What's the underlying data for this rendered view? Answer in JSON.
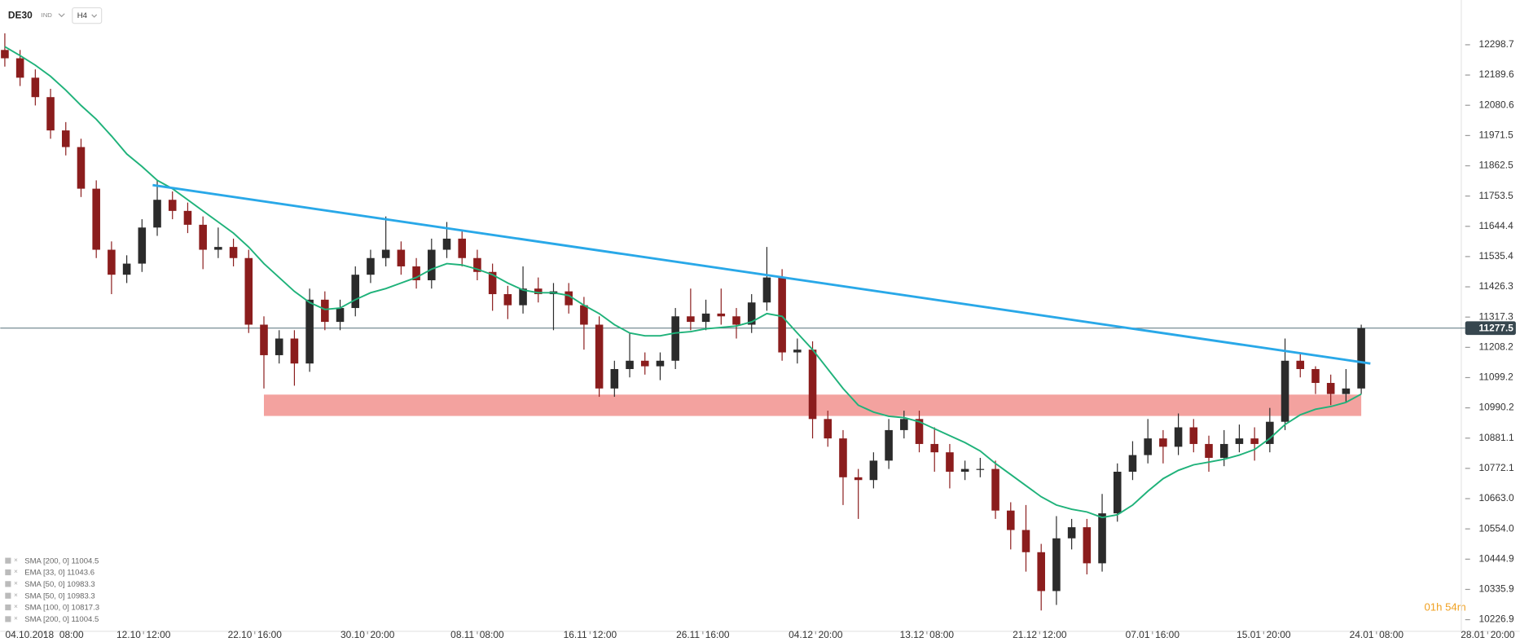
{
  "chart_data": {
    "type": "candlestick",
    "symbol": "DE30",
    "market": "IND",
    "timeframe": "H4",
    "up_color": "#2b2b2b",
    "down_color": "#8b1d1d",
    "open": [
      12280,
      12250,
      12180,
      12110,
      11990,
      11930,
      11780,
      11560,
      11470,
      11510,
      11640,
      11740,
      11700,
      11650,
      11560,
      11570,
      11530,
      11290,
      11180,
      11240,
      11150,
      11380,
      11300,
      11350,
      11470,
      11530,
      11560,
      11500,
      11450,
      11560,
      11600,
      11530,
      11480,
      11400,
      11360,
      11420,
      11400,
      11410,
      11360,
      11290,
      11060,
      11130,
      11160,
      11140,
      11160,
      11320,
      11300,
      11330,
      11320,
      11290,
      11370,
      11460,
      11190,
      11200,
      10950,
      10880,
      10740,
      10730,
      10800,
      10910,
      10950,
      10860,
      10830,
      10760,
      10770,
      10770,
      10620,
      10550,
      10470,
      10330,
      10520,
      10560,
      10430,
      10610,
      10760,
      10820,
      10880,
      10850,
      10920,
      10860,
      10810,
      10860,
      10880,
      10860,
      10940,
      11160,
      11130,
      11080,
      11040,
      11060
    ],
    "high": [
      12340,
      12280,
      12210,
      12140,
      12020,
      11960,
      11810,
      11590,
      11540,
      11670,
      11810,
      11770,
      11730,
      11680,
      11640,
      11600,
      11560,
      11320,
      11270,
      11270,
      11420,
      11410,
      11380,
      11500,
      11560,
      11680,
      11590,
      11530,
      11600,
      11660,
      11630,
      11560,
      11510,
      11430,
      11500,
      11460,
      11440,
      11440,
      11390,
      11320,
      11160,
      11260,
      11190,
      11190,
      11350,
      11420,
      11380,
      11420,
      11350,
      11400,
      11570,
      11490,
      11240,
      11230,
      10980,
      10910,
      10770,
      10830,
      10950,
      10980,
      10980,
      10920,
      10860,
      10800,
      10810,
      10800,
      10650,
      10640,
      10500,
      10600,
      10590,
      10590,
      10680,
      10790,
      10870,
      10950,
      10910,
      10970,
      10950,
      10890,
      10910,
      10930,
      10920,
      10990,
      11240,
      11190,
      11140,
      11110,
      11130,
      11290
    ],
    "low": [
      12220,
      12150,
      12080,
      11960,
      11900,
      11750,
      11530,
      11400,
      11440,
      11480,
      11610,
      11670,
      11620,
      11490,
      11530,
      11500,
      11260,
      11060,
      11150,
      11070,
      11120,
      11270,
      11270,
      11320,
      11440,
      11500,
      11470,
      11420,
      11420,
      11530,
      11500,
      11450,
      11340,
      11310,
      11330,
      11370,
      11270,
      11330,
      11200,
      11030,
      11030,
      11100,
      11110,
      11090,
      11130,
      11270,
      11270,
      11290,
      11240,
      11260,
      11340,
      11160,
      11150,
      10880,
      10850,
      10640,
      10590,
      10700,
      10770,
      10880,
      10830,
      10760,
      10700,
      10730,
      10740,
      10590,
      10480,
      10400,
      10260,
      10280,
      10480,
      10390,
      10400,
      10580,
      10730,
      10790,
      10790,
      10820,
      10830,
      10760,
      10780,
      10830,
      10800,
      10830,
      10910,
      11100,
      11040,
      11000,
      11010,
      11040
    ],
    "close": [
      12250,
      12180,
      12110,
      11990,
      11930,
      11780,
      11560,
      11470,
      11510,
      11640,
      11740,
      11700,
      11650,
      11560,
      11570,
      11530,
      11290,
      11180,
      11240,
      11150,
      11380,
      11300,
      11350,
      11470,
      11530,
      11560,
      11500,
      11450,
      11560,
      11600,
      11530,
      11480,
      11400,
      11360,
      11420,
      11400,
      11410,
      11360,
      11290,
      11060,
      11130,
      11160,
      11140,
      11160,
      11320,
      11300,
      11330,
      11320,
      11290,
      11370,
      11460,
      11190,
      11200,
      10950,
      10880,
      10740,
      10730,
      10800,
      10910,
      10950,
      10860,
      10830,
      10760,
      10770,
      10770,
      10620,
      10550,
      10470,
      10330,
      10520,
      10560,
      10430,
      10610,
      10760,
      10820,
      10880,
      10850,
      10920,
      10860,
      10810,
      10860,
      10880,
      10860,
      10940,
      11160,
      11130,
      11080,
      11040,
      11060,
      11277.5
    ],
    "sma": {
      "color": "#1fb27a",
      "values": [
        12292,
        12260,
        12225,
        12185,
        12135,
        12080,
        12030,
        11970,
        11905,
        11860,
        11810,
        11780,
        11740,
        11700,
        11660,
        11620,
        11570,
        11510,
        11460,
        11410,
        11370,
        11345,
        11350,
        11380,
        11405,
        11420,
        11440,
        11460,
        11490,
        11510,
        11505,
        11490,
        11470,
        11440,
        11415,
        11405,
        11405,
        11395,
        11360,
        11330,
        11290,
        11260,
        11250,
        11250,
        11260,
        11265,
        11275,
        11280,
        11285,
        11300,
        11330,
        11320,
        11260,
        11200,
        11130,
        11060,
        11000,
        10975,
        10960,
        10955,
        10940,
        10915,
        10890,
        10865,
        10835,
        10790,
        10750,
        10710,
        10670,
        10640,
        10625,
        10615,
        10595,
        10605,
        10640,
        10690,
        10735,
        10765,
        10785,
        10795,
        10805,
        10820,
        10840,
        10880,
        10930,
        10965,
        10985,
        10995,
        11010,
        11040
      ]
    },
    "trendline": {
      "color": "#29a8e8",
      "x": [
        9.7,
        89.6
      ],
      "y": [
        11793,
        11150
      ]
    },
    "zone": {
      "color": "#f29d9a",
      "x": [
        17,
        89
      ],
      "y": [
        10961,
        11038
      ]
    },
    "current_price": 11277.5,
    "xlim": [
      -0.3,
      99.4
    ],
    "ylim": [
      10185,
      12460
    ],
    "yticks": [
      12298.7,
      12189.6,
      12080.6,
      11971.5,
      11862.5,
      11753.5,
      11644.4,
      11535.4,
      11426.3,
      11317.3,
      11208.2,
      11099.2,
      10990.2,
      10881.1,
      10772.1,
      {
        "value": 10663.0,
        "label": "10663.0"
      },
      {
        "value": 10554.0,
        "label": "10554.0"
      },
      10444.9,
      10335.9,
      10226.9
    ],
    "xticks": [
      {
        "value": 2.6,
        "label": "04.10.2018  08:00"
      },
      {
        "value": 9.1,
        "label": "12.10  12:00"
      },
      {
        "value": 16.4,
        "label": "22.10  16:00"
      },
      {
        "value": 23.8,
        "label": "30.10  20:00"
      },
      {
        "value": 31.0,
        "label": "08.11  08:00"
      },
      {
        "value": 38.4,
        "label": "16.11  12:00"
      },
      {
        "value": 45.8,
        "label": "26.11  16:00"
      },
      {
        "value": 53.2,
        "label": "04.12  20:00"
      },
      {
        "value": 60.5,
        "label": "13.12  08:00"
      },
      {
        "value": 67.9,
        "label": "21.12  12:00"
      },
      {
        "value": 75.3,
        "label": "07.01  16:00"
      },
      {
        "value": 82.6,
        "label": "15.01  20:00"
      },
      {
        "value": 90.0,
        "label": "24.01  08:00"
      },
      {
        "value": 97.3,
        "label": "28.01  20:00"
      }
    ],
    "indicators": [
      "SMA [200, 0] 11004.5",
      "EMA [33, 0] 11043.6",
      "SMA [50, 0] 10983.3",
      "SMA [50, 0] 10983.3",
      "SMA [100, 0] 10817.3",
      "SMA [200, 0] 11004.5"
    ],
    "timer": "01h 54m"
  }
}
